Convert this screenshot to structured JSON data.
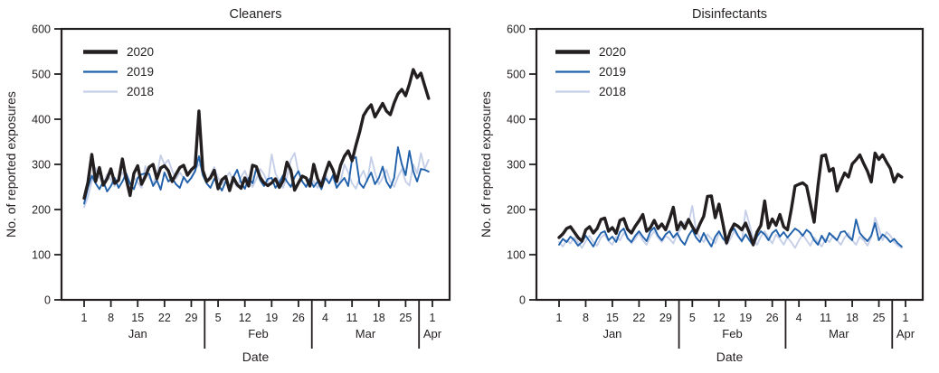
{
  "figure": {
    "background": "#ffffff",
    "axis_color": "#231f20",
    "text_color": "#231f20"
  },
  "chart_data": [
    {
      "type": "line",
      "title": "Cleaners",
      "ylabel": "No. of reported exposures",
      "xlabel": "Date",
      "ylim": [
        0,
        600
      ],
      "yticks": [
        0,
        100,
        200,
        300,
        400,
        500,
        600
      ],
      "x_domain": "day of year 2020, Jan 1 (day 1) through Mar 31 (day 91); axis extends to Apr 1 (day 92)",
      "xtick_days": [
        1,
        8,
        15,
        22,
        29,
        36,
        43,
        50,
        57,
        64,
        71,
        78,
        85,
        92
      ],
      "xtick_labels": [
        "1",
        "8",
        "15",
        "22",
        "29",
        "5",
        "12",
        "19",
        "26",
        "4",
        "11",
        "18",
        "25",
        "1"
      ],
      "month_separator_days": [
        32.5,
        60.5,
        88.5
      ],
      "months": [
        {
          "label": "Jan",
          "day": 15
        },
        {
          "label": "Feb",
          "day": 46.5
        },
        {
          "label": "Mar",
          "day": 74.5
        },
        {
          "label": "Apr",
          "day": 92
        }
      ],
      "legend": [
        {
          "label": "2020",
          "color": "#231f20",
          "stroke_width": 4.5
        },
        {
          "label": "2019",
          "color": "#2161aa",
          "stroke_width": 2.2
        },
        {
          "label": "2018",
          "color": "#c6cfe8",
          "stroke_width": 2.2
        }
      ],
      "grid": false,
      "legend_position": "upper-left inside plot",
      "series": [
        {
          "name": "2018",
          "color": "#c6cfe8",
          "stroke_width": 1.9,
          "values": [
            205,
            228,
            262,
            292,
            270,
            258,
            278,
            266,
            252,
            270,
            282,
            262,
            250,
            272,
            260,
            248,
            296,
            270,
            258,
            276,
            320,
            300,
            310,
            286,
            268,
            282,
            270,
            258,
            272,
            288,
            300,
            290,
            262,
            276,
            294,
            270,
            256,
            270,
            282,
            262,
            250,
            272,
            286,
            262,
            250,
            268,
            290,
            278,
            258,
            322,
            280,
            262,
            248,
            272,
            310,
            325,
            282,
            262,
            252,
            270,
            262,
            248,
            266,
            280,
            258,
            270,
            252,
            262,
            300,
            282,
            258,
            246,
            270,
            286,
            262,
            316,
            282,
            256,
            270,
            288,
            262,
            250,
            272,
            290,
            262,
            253,
            300,
            280,
            325,
            290,
            310
          ]
        },
        {
          "name": "2019",
          "color": "#2161aa",
          "stroke_width": 1.9,
          "values": [
            213,
            248,
            275,
            258,
            245,
            262,
            240,
            252,
            270,
            248,
            262,
            280,
            257,
            245,
            270,
            278,
            280,
            279,
            252,
            265,
            244,
            282,
            262,
            270,
            256,
            248,
            272,
            260,
            270,
            285,
            318,
            276,
            258,
            248,
            268,
            256,
            242,
            262,
            250,
            272,
            288,
            260,
            246,
            270,
            258,
            292,
            265,
            252,
            268,
            270,
            248,
            260,
            276,
            262,
            250,
            272,
            285,
            262,
            250,
            268,
            250,
            262,
            245,
            270,
            258,
            276,
            248,
            260,
            270,
            252,
            312,
            316,
            258,
            248,
            266,
            282,
            256,
            270,
            295,
            262,
            248,
            270,
            338,
            300,
            276,
            330,
            285,
            262,
            290,
            288,
            284
          ]
        },
        {
          "name": "2020",
          "color": "#231f20",
          "stroke_width": 3.4,
          "values": [
            225,
            260,
            322,
            262,
            293,
            254,
            268,
            290,
            258,
            265,
            312,
            268,
            231,
            280,
            297,
            256,
            273,
            294,
            300,
            268,
            292,
            297,
            286,
            262,
            278,
            293,
            298,
            276,
            288,
            296,
            418,
            287,
            262,
            270,
            287,
            246,
            266,
            273,
            242,
            271,
            255,
            247,
            270,
            252,
            298,
            295,
            271,
            259,
            253,
            259,
            268,
            249,
            264,
            305,
            287,
            243,
            259,
            274,
            270,
            252,
            300,
            268,
            252,
            280,
            305,
            288,
            262,
            298,
            318,
            330,
            308,
            342,
            372,
            408,
            422,
            432,
            405,
            420,
            435,
            418,
            410,
            436,
            456,
            466,
            452,
            478,
            510,
            492,
            502,
            474,
            446
          ]
        }
      ]
    },
    {
      "type": "line",
      "title": "Disinfectants",
      "ylabel": "No. of reported exposures",
      "xlabel": "Date",
      "ylim": [
        0,
        600
      ],
      "yticks": [
        0,
        100,
        200,
        300,
        400,
        500,
        600
      ],
      "x_domain": "day of year 2020, Jan 1 (day 1) through Mar 31 (day 91); axis extends to Apr 1 (day 92)",
      "xtick_days": [
        1,
        8,
        15,
        22,
        29,
        36,
        43,
        50,
        57,
        64,
        71,
        78,
        85,
        92
      ],
      "xtick_labels": [
        "1",
        "8",
        "15",
        "22",
        "29",
        "5",
        "12",
        "19",
        "26",
        "4",
        "11",
        "18",
        "25",
        "1"
      ],
      "month_separator_days": [
        32.5,
        60.5,
        88.5
      ],
      "months": [
        {
          "label": "Jan",
          "day": 15
        },
        {
          "label": "Feb",
          "day": 46.5
        },
        {
          "label": "Mar",
          "day": 74.5
        },
        {
          "label": "Apr",
          "day": 92
        }
      ],
      "legend": [
        {
          "label": "2020",
          "color": "#231f20",
          "stroke_width": 4.5
        },
        {
          "label": "2019",
          "color": "#2161aa",
          "stroke_width": 2.2
        },
        {
          "label": "2018",
          "color": "#c6cfe8",
          "stroke_width": 2.2
        }
      ],
      "grid": false,
      "legend_position": "upper-left inside plot",
      "series": [
        {
          "name": "2018",
          "color": "#c6cfe8",
          "stroke_width": 1.9,
          "values": [
            128,
            118,
            132,
            125,
            138,
            128,
            115,
            130,
            142,
            128,
            120,
            138,
            145,
            130,
            122,
            140,
            132,
            148,
            138,
            125,
            135,
            148,
            132,
            122,
            140,
            152,
            138,
            128,
            142,
            135,
            125,
            145,
            158,
            172,
            170,
            208,
            152,
            138,
            128,
            145,
            135,
            125,
            148,
            138,
            122,
            135,
            152,
            140,
            128,
            198,
            168,
            135,
            122,
            140,
            152,
            138,
            125,
            145,
            135,
            122,
            138,
            128,
            115,
            132,
            145,
            132,
            120,
            138,
            128,
            118,
            135,
            128,
            142,
            132,
            122,
            138,
            148,
            132,
            122,
            140,
            132,
            120,
            138,
            182,
            158,
            132,
            150,
            142,
            128,
            120,
            115
          ]
        },
        {
          "name": "2019",
          "color": "#2161aa",
          "stroke_width": 1.9,
          "values": [
            122,
            135,
            128,
            140,
            132,
            120,
            128,
            142,
            130,
            118,
            135,
            148,
            152,
            132,
            140,
            128,
            150,
            158,
            136,
            128,
            142,
            152,
            140,
            130,
            152,
            160,
            142,
            132,
            145,
            152,
            138,
            148,
            132,
            122,
            142,
            155,
            138,
            128,
            148,
            132,
            118,
            140,
            152,
            136,
            128,
            150,
            158,
            142,
            130,
            145,
            132,
            120,
            140,
            152,
            145,
            132,
            148,
            155,
            140,
            150,
            138,
            148,
            158,
            152,
            142,
            155,
            148,
            132,
            122,
            142,
            128,
            148,
            140,
            132,
            150,
            152,
            140,
            132,
            178,
            148,
            138,
            130,
            142,
            170,
            132,
            145,
            138,
            128,
            135,
            125,
            118
          ]
        },
        {
          "name": "2020",
          "color": "#231f20",
          "stroke_width": 3.4,
          "values": [
            138,
            146,
            158,
            162,
            150,
            138,
            130,
            155,
            162,
            148,
            158,
            178,
            181,
            152,
            160,
            147,
            176,
            180,
            156,
            148,
            163,
            175,
            189,
            152,
            160,
            176,
            158,
            168,
            155,
            178,
            205,
            155,
            172,
            158,
            178,
            162,
            148,
            168,
            185,
            229,
            230,
            182,
            212,
            170,
            126,
            152,
            168,
            163,
            155,
            170,
            148,
            122,
            150,
            165,
            219,
            159,
            179,
            165,
            189,
            162,
            155,
            200,
            252,
            256,
            259,
            252,
            212,
            172,
            252,
            319,
            321,
            285,
            291,
            241,
            262,
            281,
            272,
            301,
            310,
            321,
            302,
            285,
            261,
            325,
            311,
            321,
            305,
            291,
            261,
            278,
            272
          ]
        }
      ]
    }
  ]
}
